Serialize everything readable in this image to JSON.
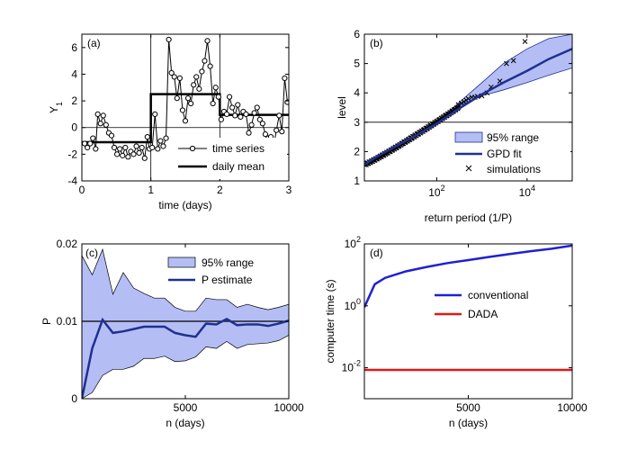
{
  "figure": {
    "description_label": "four-panel figure"
  },
  "chart_data": [
    {
      "panel": "(a)",
      "type": "line",
      "xlabel": "time (days)",
      "ylabel": "Y",
      "ylabel_sub": "1",
      "xlim": [
        0,
        3
      ],
      "ylim": [
        -4,
        7
      ],
      "xticks": [
        0,
        1,
        2,
        3
      ],
      "xtick_labels": [
        "0",
        "1",
        "2",
        "3"
      ],
      "yticks": [
        -4,
        -2,
        0,
        2,
        4,
        6
      ],
      "ytick_labels": [
        "-4",
        "-2",
        "0",
        "2",
        "4",
        "6"
      ],
      "vlines": [
        1,
        2
      ],
      "hline": 0,
      "legend": [
        "time series",
        "daily mean"
      ],
      "series": [
        {
          "name": "time series",
          "x": [
            0.04,
            0.08,
            0.12,
            0.16,
            0.2,
            0.23,
            0.27,
            0.31,
            0.35,
            0.39,
            0.43,
            0.47,
            0.51,
            0.55,
            0.59,
            0.63,
            0.67,
            0.71,
            0.75,
            0.79,
            0.83,
            0.87,
            0.91,
            0.95,
            0.98,
            1.02,
            1.06,
            1.1,
            1.14,
            1.18,
            1.22,
            1.26,
            1.3,
            1.34,
            1.38,
            1.42,
            1.46,
            1.5,
            1.54,
            1.58,
            1.62,
            1.66,
            1.7,
            1.74,
            1.78,
            1.82,
            1.86,
            1.9,
            1.94,
            1.98,
            2.02,
            2.06,
            2.1,
            2.14,
            2.18,
            2.22,
            2.26,
            2.3,
            2.34,
            2.38,
            2.42,
            2.46,
            2.5,
            2.54,
            2.58,
            2.62,
            2.66,
            2.7,
            2.74,
            2.78,
            2.82,
            2.86,
            2.9,
            2.94,
            2.98
          ],
          "y": [
            -1.2,
            -1.5,
            -1.2,
            -0.8,
            -1.6,
            1.0,
            0.3,
            0.9,
            0.2,
            -0.4,
            -0.6,
            -1.5,
            -2.0,
            -1.6,
            -2.1,
            -1.5,
            -2.2,
            -1.8,
            -2.0,
            -1.4,
            -1.9,
            -1.5,
            -2.3,
            -0.7,
            -1.6,
            -1.5,
            1.0,
            -1.6,
            -1.0,
            -1.4,
            -0.8,
            6.6,
            4.1,
            3.8,
            2.2,
            3.7,
            1.3,
            0.5,
            2.2,
            1.8,
            3.2,
            3.8,
            2.9,
            4.2,
            5.0,
            6.5,
            4.6,
            1.8,
            3.0,
            2.3,
            0.6,
            1.2,
            1.0,
            2.3,
            1.5,
            0.9,
            1.7,
            0.8,
            1.2,
            1.0,
            -0.4,
            0.2,
            1.1,
            1.5,
            0.6,
            0.3,
            -0.5,
            -0.8,
            -0.7,
            -1.4,
            -0.2,
            0.9,
            -0.3,
            3.7,
            1.9
          ]
        },
        {
          "name": "daily mean",
          "x": [
            0,
            1,
            1,
            2,
            2,
            3
          ],
          "y": [
            -1.1,
            -1.1,
            2.5,
            2.5,
            0.95,
            0.95
          ]
        }
      ]
    },
    {
      "panel": "(b)",
      "type": "line",
      "xscale": "log",
      "xlabel": "return period (1/P)",
      "ylabel": "level",
      "xlim": [
        2.5,
        100000
      ],
      "ylim": [
        1,
        6
      ],
      "xticks": [
        100,
        10000
      ],
      "xtick_bases": [
        "10",
        "10"
      ],
      "xtick_exps": [
        "2",
        "4"
      ],
      "yticks": [
        1,
        2,
        3,
        4,
        5,
        6
      ],
      "ytick_labels": [
        "1",
        "2",
        "3",
        "4",
        "5",
        "6"
      ],
      "hline": 3,
      "legend": [
        "95% range",
        "GPD fit",
        "simulations"
      ],
      "band": {
        "name": "95% range",
        "x": [
          100,
          300,
          1000,
          3000,
          10000,
          30000,
          100000
        ],
        "lower": [
          2.92,
          3.55,
          3.9,
          4.1,
          4.35,
          4.6,
          4.85
        ],
        "upper": [
          3.0,
          3.65,
          4.35,
          5.0,
          5.5,
          5.85,
          6.0
        ]
      },
      "fit": {
        "name": "GPD fit",
        "x": [
          2.5,
          5,
          10,
          30,
          100,
          300,
          1000,
          3000,
          10000,
          30000,
          100000
        ],
        "y": [
          1.55,
          1.85,
          2.1,
          2.5,
          2.95,
          3.45,
          3.95,
          4.35,
          4.75,
          5.15,
          5.5
        ]
      },
      "simulations": {
        "name": "simulations",
        "x": [
          300,
          350,
          400,
          450,
          500,
          600,
          700,
          800,
          1000,
          1300,
          1600,
          2500,
          3500,
          5000,
          9000
        ],
        "y": [
          3.6,
          3.65,
          3.7,
          3.75,
          3.8,
          3.85,
          3.85,
          3.88,
          3.9,
          4.0,
          4.2,
          4.4,
          5.0,
          5.1,
          5.75
        ]
      },
      "dense_scatter": {
        "from_x": 2.5,
        "to_x": 300,
        "from_y": 1.55,
        "to_y": 3.5
      }
    },
    {
      "panel": "(c)",
      "type": "area",
      "xlabel": "n (days)",
      "ylabel": "P",
      "xlim": [
        0,
        10000
      ],
      "ylim": [
        0,
        0.02
      ],
      "xticks": [
        5000,
        10000
      ],
      "xtick_labels": [
        "5000",
        "10000"
      ],
      "yticks": [
        0,
        0.01,
        0.02
      ],
      "ytick_labels": [
        "0",
        "0.01",
        "0.02"
      ],
      "hline": 0.01,
      "legend": [
        "95% range",
        "P estimate"
      ],
      "x": [
        0,
        500,
        1000,
        1500,
        2000,
        2500,
        3000,
        3500,
        4000,
        4500,
        5000,
        5500,
        6000,
        6500,
        7000,
        7500,
        8000,
        8500,
        9000,
        9500,
        10000
      ],
      "estimate": [
        0,
        0.0065,
        0.0102,
        0.0085,
        0.0087,
        0.009,
        0.0093,
        0.0093,
        0.0093,
        0.0085,
        0.0082,
        0.008,
        0.0097,
        0.0096,
        0.0103,
        0.0095,
        0.0096,
        0.0096,
        0.0094,
        0.0097,
        0.0101
      ],
      "lower": [
        0,
        0.0008,
        0.003,
        0.0038,
        0.0038,
        0.0042,
        0.0052,
        0.0052,
        0.0055,
        0.0048,
        0.0049,
        0.0054,
        0.0067,
        0.0065,
        0.0074,
        0.0065,
        0.007,
        0.0071,
        0.0072,
        0.0075,
        0.0082
      ],
      "upper": [
        0.0185,
        0.016,
        0.0193,
        0.0135,
        0.0163,
        0.0143,
        0.0136,
        0.013,
        0.013,
        0.0118,
        0.0113,
        0.0113,
        0.013,
        0.0128,
        0.0128,
        0.0118,
        0.0122,
        0.0118,
        0.0115,
        0.0118,
        0.0122
      ]
    },
    {
      "panel": "(d)",
      "type": "line",
      "yscale": "log",
      "xlabel": "n (days)",
      "ylabel": "computer time (s)",
      "xlim": [
        0,
        10000
      ],
      "ylim": [
        0.001,
        100
      ],
      "xticks": [
        5000,
        10000
      ],
      "xtick_labels": [
        "5000",
        "10000"
      ],
      "yticks": [
        0.01,
        1,
        100
      ],
      "ytick_bases": [
        "10",
        "10",
        "10"
      ],
      "ytick_exps": [
        "-2",
        "0",
        "2"
      ],
      "legend": [
        "conventional",
        "DADA"
      ],
      "series": [
        {
          "name": "conventional",
          "x": [
            0,
            500,
            1000,
            2000,
            3000,
            4000,
            5000,
            6000,
            7000,
            8000,
            9000,
            10000
          ],
          "y": [
            0.9,
            5.0,
            8.0,
            13,
            18,
            24,
            30,
            38,
            47,
            58,
            70,
            88
          ]
        },
        {
          "name": "DADA",
          "x": [
            0,
            10000
          ],
          "y": [
            0.0085,
            0.0085
          ]
        }
      ]
    }
  ],
  "colors": {
    "dark_blue": "#1f3090",
    "band_fill": "#b4bef5",
    "conventional": "#2020d0",
    "dada": "#e01818",
    "marker_fill": "#ffffff",
    "axis": "#000000"
  }
}
